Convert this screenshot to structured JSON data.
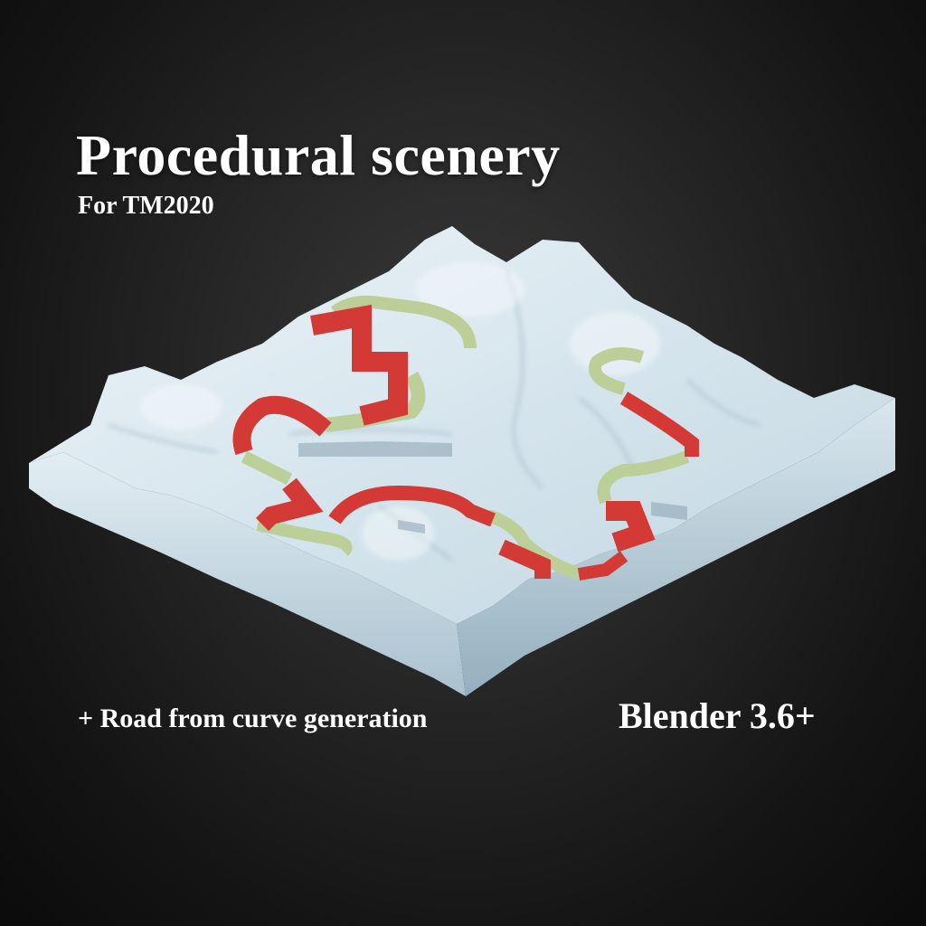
{
  "poster": {
    "title": "Procedural scenery",
    "subtitle": "For TM2020",
    "feature": "+ Road from curve generation",
    "version": "Blender 3.6+"
  },
  "colors": {
    "background": "#1e1e1e",
    "terrain": "#d7e6ee",
    "terrain_shadow": "#9fb8c6",
    "road_red": "#d33a36",
    "road_green": "#bccf98"
  }
}
